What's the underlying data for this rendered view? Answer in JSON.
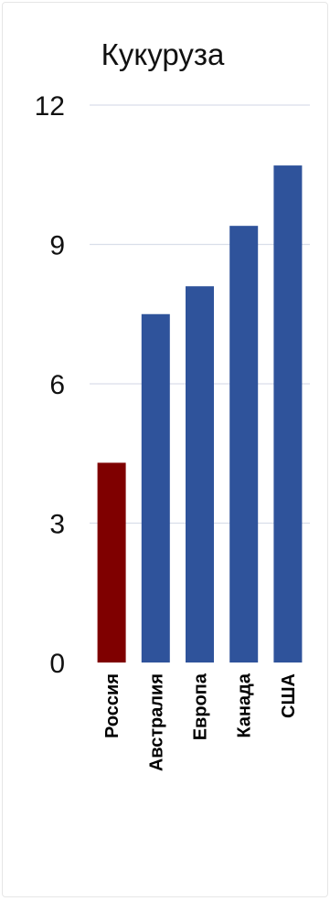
{
  "chart_data": {
    "type": "bar",
    "title": "Кукуруза",
    "xlabel": "",
    "ylabel": "",
    "categories": [
      "Россия",
      "Австралия",
      "Европа",
      "Канада",
      "США"
    ],
    "values": [
      4.3,
      7.5,
      8.1,
      9.4,
      10.7
    ],
    "bar_colors": [
      "#7f0000",
      "#2f539b",
      "#2f539b",
      "#2f539b",
      "#2f539b"
    ],
    "ylim": [
      0,
      12
    ],
    "yticks": [
      "0",
      "3",
      "6",
      "9",
      "12"
    ],
    "grid": true,
    "legend": "none"
  }
}
